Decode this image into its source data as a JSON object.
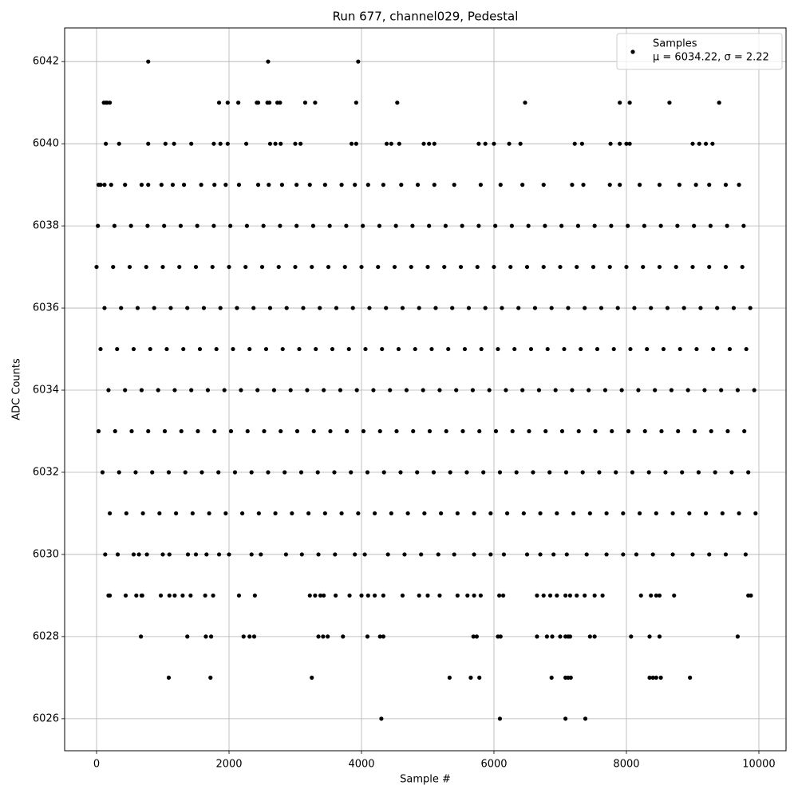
{
  "chart_data": {
    "type": "scatter",
    "title": "Run 677, channel029, Pedestal",
    "x_label": "Sample #",
    "y_label": "ADC Counts",
    "xlim": [
      -482,
      10410
    ],
    "ylim": [
      6025.22,
      6042.82
    ],
    "xticks": [
      0,
      2000,
      4000,
      6000,
      8000,
      10000
    ],
    "yticks": [
      6026,
      6028,
      6030,
      6032,
      6034,
      6036,
      6038,
      6040,
      6042
    ],
    "grid": true,
    "legend": "upper right",
    "stats_label": "μ = 6034.22, σ = 2.22",
    "x": [
      780,
      2590,
      3950,
      110,
      140,
      160,
      200,
      1850,
      1980,
      2140,
      2420,
      2440,
      2580,
      2610,
      2730,
      2770,
      3150,
      3300,
      3920,
      4540,
      6470,
      7900,
      8050,
      8650,
      9400,
      140,
      340,
      780,
      1040,
      1170,
      1430,
      1770,
      1870,
      1980,
      2260,
      2620,
      2700,
      2780,
      3000,
      3080,
      3850,
      3920,
      4380,
      4450,
      4570,
      4940,
      5020,
      5100,
      5770,
      5870,
      6000,
      6230,
      6400,
      7220,
      7330,
      7760,
      7900,
      8000,
      8050,
      9000,
      9100,
      9200,
      9300,
      30,
      60,
      120,
      220,
      430,
      680,
      780,
      980,
      1150,
      1320,
      1580,
      1780,
      1950,
      2150,
      2440,
      2600,
      2800,
      3020,
      3220,
      3450,
      3700,
      3900,
      4100,
      4330,
      4600,
      4850,
      5100,
      5400,
      5800,
      6100,
      6430,
      6750,
      7180,
      7350,
      7750,
      7900,
      8200,
      8500,
      8800,
      9050,
      9250,
      9500,
      9700,
      20,
      270,
      520,
      770,
      1020,
      1270,
      1520,
      1770,
      2020,
      2270,
      2520,
      2770,
      3020,
      3270,
      3520,
      3770,
      4020,
      4270,
      4520,
      4770,
      5020,
      5270,
      5520,
      5770,
      6020,
      6270,
      6520,
      6770,
      7020,
      7270,
      7520,
      7770,
      8020,
      8270,
      8520,
      8770,
      9020,
      9270,
      9520,
      9770,
      0,
      250,
      500,
      750,
      1000,
      1250,
      1500,
      1750,
      2000,
      2250,
      2500,
      2750,
      3000,
      3250,
      3500,
      3750,
      4000,
      4250,
      4500,
      4750,
      5000,
      5250,
      5500,
      5750,
      6000,
      6250,
      6500,
      6750,
      7000,
      7250,
      7500,
      7750,
      8000,
      8250,
      8500,
      8750,
      9000,
      9250,
      9500,
      9750,
      120,
      370,
      620,
      870,
      1120,
      1370,
      1620,
      1870,
      2120,
      2370,
      2620,
      2870,
      3120,
      3370,
      3620,
      3870,
      4120,
      4370,
      4620,
      4870,
      5120,
      5370,
      5620,
      5870,
      6120,
      6370,
      6620,
      6870,
      7120,
      7370,
      7620,
      7870,
      8120,
      8370,
      8620,
      8870,
      9120,
      9370,
      9620,
      9870,
      60,
      310,
      560,
      810,
      1060,
      1310,
      1560,
      1810,
      2060,
      2310,
      2560,
      2810,
      3060,
      3310,
      3560,
      3810,
      4060,
      4310,
      4560,
      4810,
      5060,
      5310,
      5560,
      5810,
      6060,
      6310,
      6560,
      6810,
      7060,
      7310,
      7560,
      7810,
      8060,
      8310,
      8560,
      8810,
      9060,
      9310,
      9560,
      9810,
      180,
      430,
      680,
      930,
      1180,
      1430,
      1680,
      1930,
      2180,
      2430,
      2680,
      2930,
      3180,
      3430,
      3680,
      3930,
      4180,
      4430,
      4680,
      4930,
      5180,
      5430,
      5680,
      5930,
      6180,
      6430,
      6680,
      6930,
      7180,
      7430,
      7680,
      7930,
      8180,
      8430,
      8680,
      8930,
      9180,
      9430,
      9680,
      9930,
      30,
      280,
      530,
      780,
      1030,
      1280,
      1530,
      1780,
      2030,
      2280,
      2530,
      2780,
      3030,
      3280,
      3530,
      3780,
      4030,
      4280,
      4530,
      4780,
      5030,
      5280,
      5530,
      5780,
      6030,
      6280,
      6530,
      6780,
      7030,
      7280,
      7530,
      7780,
      8030,
      8280,
      8530,
      8780,
      9030,
      9280,
      9530,
      9780,
      90,
      340,
      590,
      840,
      1090,
      1340,
      1590,
      1840,
      2090,
      2340,
      2590,
      2840,
      3090,
      3340,
      3590,
      3840,
      4090,
      4340,
      4590,
      4840,
      5090,
      5340,
      5590,
      5840,
      6090,
      6340,
      6590,
      6840,
      7090,
      7340,
      7590,
      7840,
      8090,
      8340,
      8590,
      8840,
      9090,
      9340,
      9590,
      9840,
      200,
      450,
      700,
      950,
      1200,
      1450,
      1700,
      1950,
      2200,
      2450,
      2700,
      2950,
      3200,
      3450,
      3700,
      3950,
      4200,
      4450,
      4700,
      4950,
      5200,
      5450,
      5700,
      5950,
      6200,
      6450,
      6700,
      6950,
      7200,
      7450,
      7700,
      7950,
      8200,
      8450,
      8700,
      8950,
      9200,
      9450,
      9700,
      9950,
      130,
      320,
      560,
      640,
      760,
      1000,
      1100,
      1380,
      1500,
      1660,
      1850,
      2000,
      2340,
      2480,
      2860,
      3100,
      3350,
      3600,
      3900,
      4050,
      4400,
      4650,
      4900,
      5160,
      5400,
      5700,
      5950,
      6150,
      6500,
      6700,
      6900,
      7100,
      7400,
      7700,
      7950,
      8150,
      8400,
      8700,
      9000,
      9250,
      9500,
      9800,
      180,
      200,
      440,
      600,
      680,
      690,
      970,
      1100,
      1180,
      1300,
      1420,
      1640,
      1760,
      2150,
      2390,
      3220,
      3300,
      3380,
      3430,
      3610,
      3820,
      4000,
      4100,
      4200,
      4330,
      4620,
      4870,
      5000,
      5180,
      5450,
      5600,
      5700,
      5800,
      6080,
      6140,
      6650,
      6750,
      6850,
      6950,
      7080,
      7150,
      7250,
      7370,
      7520,
      7640,
      8220,
      8370,
      8450,
      8500,
      8720,
      9840,
      9880,
      670,
      1370,
      1650,
      1730,
      2220,
      2310,
      2380,
      3350,
      3420,
      3490,
      3720,
      4090,
      4280,
      4330,
      5690,
      5740,
      6060,
      6100,
      6650,
      6800,
      6880,
      7000,
      7080,
      7120,
      7150,
      7450,
      7520,
      8070,
      8350,
      8500,
      9680,
      1090,
      1720,
      3250,
      5330,
      5650,
      5780,
      6870,
      7080,
      7120,
      7160,
      8350,
      8400,
      8450,
      8520,
      8960,
      4300,
      6090,
      7080,
      7380
    ],
    "series": [
      {
        "name": "Samples",
        "color": "#000000",
        "values": [
          6042,
          6042,
          6042,
          6041,
          6041,
          6041,
          6041,
          6041,
          6041,
          6041,
          6041,
          6041,
          6041,
          6041,
          6041,
          6041,
          6041,
          6041,
          6041,
          6041,
          6041,
          6041,
          6041,
          6041,
          6041,
          6040,
          6040,
          6040,
          6040,
          6040,
          6040,
          6040,
          6040,
          6040,
          6040,
          6040,
          6040,
          6040,
          6040,
          6040,
          6040,
          6040,
          6040,
          6040,
          6040,
          6040,
          6040,
          6040,
          6040,
          6040,
          6040,
          6040,
          6040,
          6040,
          6040,
          6040,
          6040,
          6040,
          6040,
          6040,
          6040,
          6040,
          6040,
          6039,
          6039,
          6039,
          6039,
          6039,
          6039,
          6039,
          6039,
          6039,
          6039,
          6039,
          6039,
          6039,
          6039,
          6039,
          6039,
          6039,
          6039,
          6039,
          6039,
          6039,
          6039,
          6039,
          6039,
          6039,
          6039,
          6039,
          6039,
          6039,
          6039,
          6039,
          6039,
          6039,
          6039,
          6039,
          6039,
          6039,
          6039,
          6039,
          6039,
          6039,
          6039,
          6039,
          6038,
          6038,
          6038,
          6038,
          6038,
          6038,
          6038,
          6038,
          6038,
          6038,
          6038,
          6038,
          6038,
          6038,
          6038,
          6038,
          6038,
          6038,
          6038,
          6038,
          6038,
          6038,
          6038,
          6038,
          6038,
          6038,
          6038,
          6038,
          6038,
          6038,
          6038,
          6038,
          6038,
          6038,
          6038,
          6038,
          6038,
          6038,
          6038,
          6038,
          6037,
          6037,
          6037,
          6037,
          6037,
          6037,
          6037,
          6037,
          6037,
          6037,
          6037,
          6037,
          6037,
          6037,
          6037,
          6037,
          6037,
          6037,
          6037,
          6037,
          6037,
          6037,
          6037,
          6037,
          6037,
          6037,
          6037,
          6037,
          6037,
          6037,
          6037,
          6037,
          6037,
          6037,
          6037,
          6037,
          6037,
          6037,
          6037,
          6037,
          6036,
          6036,
          6036,
          6036,
          6036,
          6036,
          6036,
          6036,
          6036,
          6036,
          6036,
          6036,
          6036,
          6036,
          6036,
          6036,
          6036,
          6036,
          6036,
          6036,
          6036,
          6036,
          6036,
          6036,
          6036,
          6036,
          6036,
          6036,
          6036,
          6036,
          6036,
          6036,
          6036,
          6036,
          6036,
          6036,
          6036,
          6036,
          6036,
          6036,
          6035,
          6035,
          6035,
          6035,
          6035,
          6035,
          6035,
          6035,
          6035,
          6035,
          6035,
          6035,
          6035,
          6035,
          6035,
          6035,
          6035,
          6035,
          6035,
          6035,
          6035,
          6035,
          6035,
          6035,
          6035,
          6035,
          6035,
          6035,
          6035,
          6035,
          6035,
          6035,
          6035,
          6035,
          6035,
          6035,
          6035,
          6035,
          6035,
          6035,
          6034,
          6034,
          6034,
          6034,
          6034,
          6034,
          6034,
          6034,
          6034,
          6034,
          6034,
          6034,
          6034,
          6034,
          6034,
          6034,
          6034,
          6034,
          6034,
          6034,
          6034,
          6034,
          6034,
          6034,
          6034,
          6034,
          6034,
          6034,
          6034,
          6034,
          6034,
          6034,
          6034,
          6034,
          6034,
          6034,
          6034,
          6034,
          6034,
          6034,
          6033,
          6033,
          6033,
          6033,
          6033,
          6033,
          6033,
          6033,
          6033,
          6033,
          6033,
          6033,
          6033,
          6033,
          6033,
          6033,
          6033,
          6033,
          6033,
          6033,
          6033,
          6033,
          6033,
          6033,
          6033,
          6033,
          6033,
          6033,
          6033,
          6033,
          6033,
          6033,
          6033,
          6033,
          6033,
          6033,
          6033,
          6033,
          6033,
          6033,
          6032,
          6032,
          6032,
          6032,
          6032,
          6032,
          6032,
          6032,
          6032,
          6032,
          6032,
          6032,
          6032,
          6032,
          6032,
          6032,
          6032,
          6032,
          6032,
          6032,
          6032,
          6032,
          6032,
          6032,
          6032,
          6032,
          6032,
          6032,
          6032,
          6032,
          6032,
          6032,
          6032,
          6032,
          6032,
          6032,
          6032,
          6032,
          6032,
          6032,
          6031,
          6031,
          6031,
          6031,
          6031,
          6031,
          6031,
          6031,
          6031,
          6031,
          6031,
          6031,
          6031,
          6031,
          6031,
          6031,
          6031,
          6031,
          6031,
          6031,
          6031,
          6031,
          6031,
          6031,
          6031,
          6031,
          6031,
          6031,
          6031,
          6031,
          6031,
          6031,
          6031,
          6031,
          6031,
          6031,
          6031,
          6031,
          6031,
          6031,
          6030,
          6030,
          6030,
          6030,
          6030,
          6030,
          6030,
          6030,
          6030,
          6030,
          6030,
          6030,
          6030,
          6030,
          6030,
          6030,
          6030,
          6030,
          6030,
          6030,
          6030,
          6030,
          6030,
          6030,
          6030,
          6030,
          6030,
          6030,
          6030,
          6030,
          6030,
          6030,
          6030,
          6030,
          6030,
          6030,
          6030,
          6030,
          6030,
          6030,
          6030,
          6030,
          6029,
          6029,
          6029,
          6029,
          6029,
          6029,
          6029,
          6029,
          6029,
          6029,
          6029,
          6029,
          6029,
          6029,
          6029,
          6029,
          6029,
          6029,
          6029,
          6029,
          6029,
          6029,
          6029,
          6029,
          6029,
          6029,
          6029,
          6029,
          6029,
          6029,
          6029,
          6029,
          6029,
          6029,
          6029,
          6029,
          6029,
          6029,
          6029,
          6029,
          6029,
          6029,
          6029,
          6029,
          6029,
          6029,
          6029,
          6029,
          6029,
          6029,
          6029,
          6029,
          6028,
          6028,
          6028,
          6028,
          6028,
          6028,
          6028,
          6028,
          6028,
          6028,
          6028,
          6028,
          6028,
          6028,
          6028,
          6028,
          6028,
          6028,
          6028,
          6028,
          6028,
          6028,
          6028,
          6028,
          6028,
          6028,
          6028,
          6028,
          6028,
          6028,
          6028,
          6027,
          6027,
          6027,
          6027,
          6027,
          6027,
          6027,
          6027,
          6027,
          6027,
          6027,
          6027,
          6027,
          6027,
          6027,
          6026,
          6026,
          6026,
          6026
        ]
      }
    ]
  }
}
